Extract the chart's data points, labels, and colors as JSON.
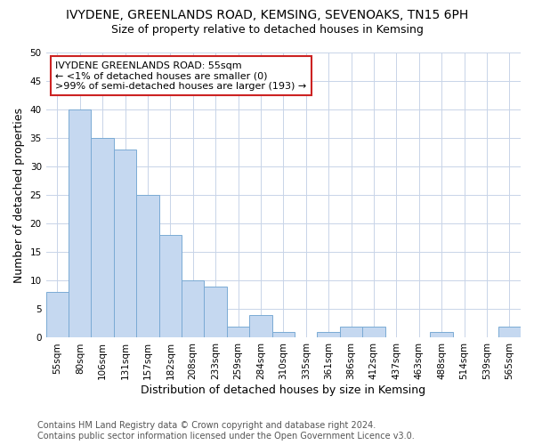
{
  "title": "IVYDENE, GREENLANDS ROAD, KEMSING, SEVENOAKS, TN15 6PH",
  "subtitle": "Size of property relative to detached houses in Kemsing",
  "xlabel": "Distribution of detached houses by size in Kemsing",
  "ylabel": "Number of detached properties",
  "footer_line1": "Contains HM Land Registry data © Crown copyright and database right 2024.",
  "footer_line2": "Contains public sector information licensed under the Open Government Licence v3.0.",
  "categories": [
    "55sqm",
    "80sqm",
    "106sqm",
    "131sqm",
    "157sqm",
    "182sqm",
    "208sqm",
    "233sqm",
    "259sqm",
    "284sqm",
    "310sqm",
    "335sqm",
    "361sqm",
    "386sqm",
    "412sqm",
    "437sqm",
    "463sqm",
    "488sqm",
    "514sqm",
    "539sqm",
    "565sqm"
  ],
  "values": [
    8,
    40,
    35,
    33,
    25,
    18,
    10,
    9,
    2,
    4,
    1,
    0,
    1,
    2,
    2,
    0,
    0,
    1,
    0,
    0,
    2
  ],
  "bar_color": "#c5d8f0",
  "bar_edge_color": "#7aaad4",
  "annotation_box_text": "IVYDENE GREENLANDS ROAD: 55sqm\n← <1% of detached houses are smaller (0)\n>99% of semi-detached houses are larger (193) →",
  "annotation_box_color": "#ffffff",
  "annotation_box_edge_color": "#cc2222",
  "ylim": [
    0,
    50
  ],
  "yticks": [
    0,
    5,
    10,
    15,
    20,
    25,
    30,
    35,
    40,
    45,
    50
  ],
  "grid_color": "#c8d4e8",
  "background_color": "#ffffff",
  "title_fontsize": 10,
  "subtitle_fontsize": 9,
  "footer_fontsize": 7,
  "axis_label_fontsize": 9,
  "tick_fontsize": 7.5
}
